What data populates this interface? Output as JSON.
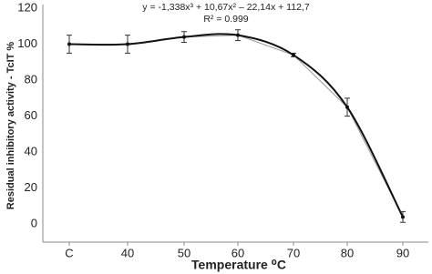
{
  "chart_data": {
    "type": "line",
    "annotations": [
      "y = -1,338x³ + 10,67x² – 22,14x + 112,7",
      "R² = 0.999"
    ],
    "x_label": "Temperature ⁰C",
    "y_label": "Residual inhibitory activity - TcIT %",
    "categories": [
      "C",
      "40",
      "50",
      "60",
      "70",
      "80",
      "90"
    ],
    "series": [
      {
        "color": "#111111",
        "values": [
          100,
          100,
          104,
          105,
          94,
          65,
          4
        ],
        "errors": [
          5,
          5,
          3,
          3,
          1,
          5,
          3
        ]
      }
    ],
    "ylim": [
      -10,
      120
    ],
    "yticks": [
      0,
      20,
      40,
      60,
      80,
      100,
      120
    ],
    "grid": false
  }
}
